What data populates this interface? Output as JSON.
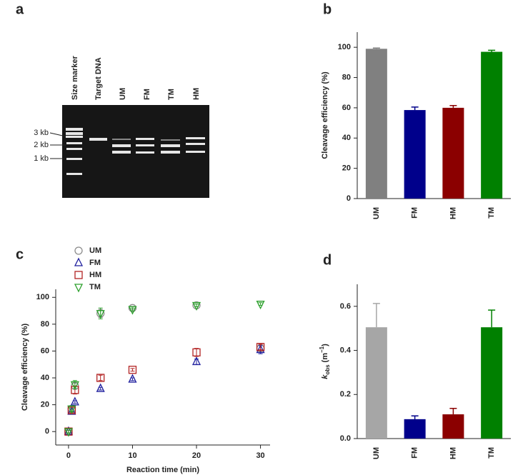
{
  "gel_panel": {
    "panel": "a",
    "lanes": [
      "Size marker",
      "Target DNA",
      "UM",
      "FM",
      "TM",
      "HM"
    ],
    "size_labels": [
      "3 kb",
      "2 kb",
      "1 kb"
    ]
  },
  "chart_data": [
    {
      "type": "bar",
      "panel": "b",
      "ylabel": "Cleavage efficiency (%)",
      "categories": [
        "UM",
        "FM",
        "HM",
        "TM"
      ],
      "values": [
        99,
        58.5,
        60,
        97
      ],
      "errors": [
        0.5,
        2,
        1.5,
        1
      ],
      "colors": [
        "#808080",
        "#00008b",
        "#8b0000",
        "#008000"
      ],
      "ylim": [
        0,
        110
      ],
      "yticks": [
        0,
        20,
        40,
        60,
        80,
        100
      ]
    },
    {
      "type": "scatter",
      "panel": "c",
      "xlabel": "Reaction time (min)",
      "ylabel": "Cleavage efficiency (%)",
      "x": [
        0,
        0.5,
        1,
        5,
        10,
        20,
        30
      ],
      "series": [
        {
          "name": "UM",
          "color": "#8c8c8c",
          "marker": "circle",
          "values": [
            0,
            17,
            34,
            88,
            92,
            94,
            62
          ],
          "errors": [
            1,
            2,
            2,
            3,
            1,
            1,
            2
          ]
        },
        {
          "name": "FM",
          "color": "#1f1f9e",
          "marker": "triangle-up",
          "values": [
            0,
            15,
            22,
            32,
            39,
            52,
            61
          ],
          "errors": [
            1,
            2,
            1,
            1,
            1,
            2,
            3
          ]
        },
        {
          "name": "HM",
          "color": "#b22222",
          "marker": "square",
          "values": [
            0,
            16,
            31,
            40,
            46,
            59,
            63
          ],
          "errors": [
            1,
            2,
            3,
            2,
            1,
            3,
            2
          ]
        },
        {
          "name": "TM",
          "color": "#2ca02c",
          "marker": "triangle-down",
          "values": [
            0,
            17,
            35,
            88,
            91,
            94,
            95
          ],
          "errors": [
            1,
            2,
            3,
            4,
            1,
            1,
            1
          ]
        }
      ],
      "xlim": [
        -2,
        31.5
      ],
      "ylim": [
        -10,
        106
      ],
      "xticks": [
        0,
        10,
        20,
        30
      ],
      "yticks": [
        0,
        20,
        40,
        60,
        80,
        100
      ],
      "legend": "top-left"
    },
    {
      "type": "bar",
      "panel": "d",
      "ylabel_parts": [
        "k",
        "obs",
        "(m",
        "−1",
        ")"
      ],
      "categories": [
        "UM",
        "FM",
        "HM",
        "TM"
      ],
      "values": [
        0.505,
        0.088,
        0.11,
        0.505
      ],
      "errors": [
        0.108,
        0.015,
        0.027,
        0.078
      ],
      "colors": [
        "#a6a6a6",
        "#00008b",
        "#8b0000",
        "#008000"
      ],
      "ylim": [
        0,
        0.7
      ],
      "yticks": [
        {
          "value": 0,
          "label": "0.0"
        },
        {
          "value": 0.2,
          "label": "0.2"
        },
        {
          "value": 0.4,
          "label": "0.4"
        },
        {
          "value": 0.6,
          "label": "0.6"
        }
      ]
    }
  ]
}
